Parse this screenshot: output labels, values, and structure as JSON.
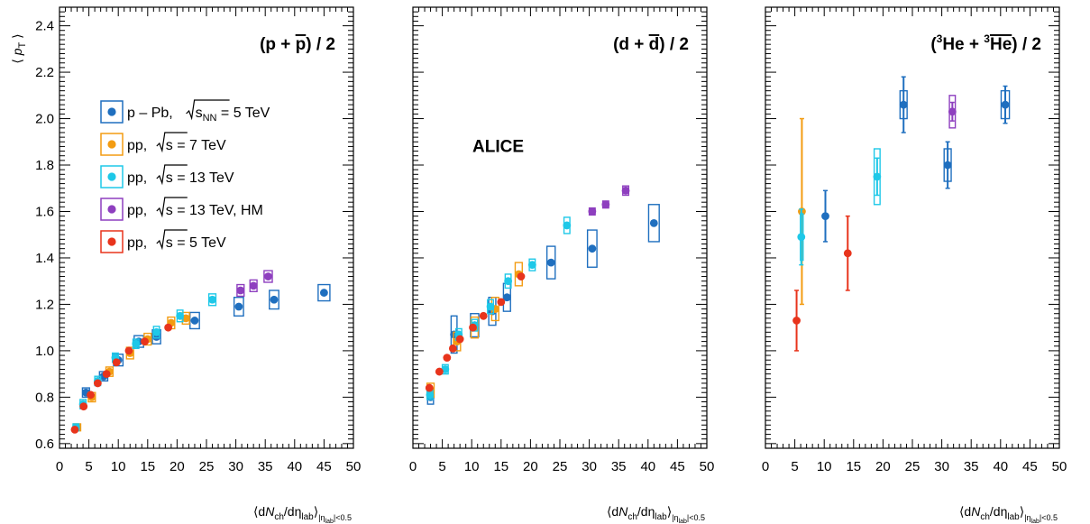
{
  "chart_data": [
    {
      "type": "scatter",
      "title": "(p + p) / 2",
      "title_parts": {
        "open": "(p + ",
        "bar": "p",
        "close": ") / 2"
      },
      "xlabel": {
        "main": "⟨dN",
        "sub1": "ch",
        "mid": "/dη",
        "sub2": "lab",
        "close": "⟩",
        "sub3": "|η_lab|<0.5"
      },
      "ylabel": "⟨ p_T ⟩",
      "xlim": [
        0,
        50
      ],
      "ylim": [
        0.58,
        2.48
      ],
      "xticks": [
        "0",
        "5",
        "10",
        "15",
        "20",
        "25",
        "30",
        "35",
        "40",
        "45",
        "50"
      ],
      "yticks": [
        "0.6",
        "0.8",
        "1.0",
        "1.2",
        "1.4",
        "1.6",
        "1.8",
        "2.0",
        "2.2",
        "2.4"
      ],
      "legend": {
        "placement": "upper-left",
        "entries": [
          {
            "series": "pPb",
            "label_main": "p – Pb, ",
            "sqrt": "s",
            "sqrt_sub": "NN",
            "label_tail": " = 5 TeV"
          },
          {
            "series": "pp7",
            "label_main": "pp, ",
            "sqrt": "s",
            "sqrt_sub": "",
            "label_tail": " = 7 TeV"
          },
          {
            "series": "pp13",
            "label_main": "pp, ",
            "sqrt": "s",
            "sqrt_sub": "",
            "label_tail": " = 13 TeV"
          },
          {
            "series": "pp13HM",
            "label_main": "pp, ",
            "sqrt": "s",
            "sqrt_sub": "",
            "label_tail": " = 13 TeV, HM"
          },
          {
            "series": "pp5",
            "label_main": "pp, ",
            "sqrt": "s",
            "sqrt_sub": "",
            "label_tail": " = 5 TeV"
          }
        ]
      },
      "series": [
        {
          "id": "pPb",
          "color": "#1f6fbf",
          "points": [
            {
              "x": 4.5,
              "y": 0.82,
              "sx": 0.6,
              "sy": 0.02
            },
            {
              "x": 7.5,
              "y": 0.89,
              "sx": 0.7,
              "sy": 0.02
            },
            {
              "x": 10,
              "y": 0.96,
              "sx": 0.8,
              "sy": 0.025
            },
            {
              "x": 13.5,
              "y": 1.04,
              "sx": 0.8,
              "sy": 0.025
            },
            {
              "x": 16.5,
              "y": 1.06,
              "sx": 0.7,
              "sy": 0.03
            },
            {
              "x": 23,
              "y": 1.13,
              "sx": 0.8,
              "sy": 0.035
            },
            {
              "x": 30.5,
              "y": 1.19,
              "sx": 0.8,
              "sy": 0.04
            },
            {
              "x": 36.5,
              "y": 1.22,
              "sx": 0.8,
              "sy": 0.04
            },
            {
              "x": 45,
              "y": 1.25,
              "sx": 1.0,
              "sy": 0.035
            }
          ]
        },
        {
          "id": "pp7",
          "color": "#f39c12",
          "points": [
            {
              "x": 3,
              "y": 0.67,
              "sx": 0.6,
              "sy": 0.015
            },
            {
              "x": 5.5,
              "y": 0.8,
              "sx": 0.6,
              "sy": 0.02
            },
            {
              "x": 8.5,
              "y": 0.91,
              "sx": 0.6,
              "sy": 0.02
            },
            {
              "x": 12,
              "y": 0.99,
              "sx": 0.6,
              "sy": 0.025
            },
            {
              "x": 15,
              "y": 1.05,
              "sx": 0.6,
              "sy": 0.025
            },
            {
              "x": 19,
              "y": 1.12,
              "sx": 0.6,
              "sy": 0.025
            },
            {
              "x": 21.5,
              "y": 1.14,
              "sx": 0.6,
              "sy": 0.025
            }
          ]
        },
        {
          "id": "pp13",
          "color": "#1ec8e8",
          "points": [
            {
              "x": 2.8,
              "y": 0.67,
              "sx": 0.5,
              "sy": 0.015
            },
            {
              "x": 4,
              "y": 0.77,
              "sx": 0.5,
              "sy": 0.02
            },
            {
              "x": 6.5,
              "y": 0.87,
              "sx": 0.5,
              "sy": 0.02
            },
            {
              "x": 9.5,
              "y": 0.97,
              "sx": 0.5,
              "sy": 0.02
            },
            {
              "x": 13,
              "y": 1.03,
              "sx": 0.5,
              "sy": 0.02
            },
            {
              "x": 16.5,
              "y": 1.08,
              "sx": 0.5,
              "sy": 0.025
            },
            {
              "x": 20.5,
              "y": 1.15,
              "sx": 0.5,
              "sy": 0.025
            },
            {
              "x": 26,
              "y": 1.22,
              "sx": 0.6,
              "sy": 0.025
            }
          ]
        },
        {
          "id": "pp13HM",
          "color": "#8e3fbf",
          "points": [
            {
              "x": 30.8,
              "y": 1.26,
              "sx": 0.6,
              "sy": 0.025
            },
            {
              "x": 33,
              "y": 1.28,
              "sx": 0.6,
              "sy": 0.025
            },
            {
              "x": 35.5,
              "y": 1.32,
              "sx": 0.7,
              "sy": 0.025
            }
          ]
        },
        {
          "id": "pp5",
          "color": "#e8341c",
          "points": [
            {
              "x": 2.6,
              "y": 0.66,
              "sx": 0,
              "sy": 0
            },
            {
              "x": 4.1,
              "y": 0.76,
              "sx": 0,
              "sy": 0
            },
            {
              "x": 5.3,
              "y": 0.81,
              "sx": 0,
              "sy": 0
            },
            {
              "x": 6.5,
              "y": 0.86,
              "sx": 0,
              "sy": 0
            },
            {
              "x": 8,
              "y": 0.9,
              "sx": 0,
              "sy": 0
            },
            {
              "x": 9.7,
              "y": 0.95,
              "sx": 0,
              "sy": 0
            },
            {
              "x": 11.8,
              "y": 1.0,
              "sx": 0,
              "sy": 0
            },
            {
              "x": 14.5,
              "y": 1.04,
              "sx": 0,
              "sy": 0
            },
            {
              "x": 18.5,
              "y": 1.1,
              "sx": 0,
              "sy": 0
            }
          ]
        }
      ]
    },
    {
      "type": "scatter",
      "title": "(d + d) / 2",
      "title_parts": {
        "open": "(d + ",
        "bar": "d",
        "close": ") / 2"
      },
      "watermark": "ALICE",
      "xlabel": {
        "main": "⟨dN",
        "sub1": "ch",
        "mid": "/dη",
        "sub2": "lab",
        "close": "⟩",
        "sub3": "|η_lab|<0.5"
      },
      "xlim": [
        0,
        50
      ],
      "ylim": [
        0.58,
        2.48
      ],
      "xticks": [
        "0",
        "5",
        "10",
        "15",
        "20",
        "25",
        "30",
        "35",
        "40",
        "45",
        "50"
      ],
      "series": [
        {
          "id": "pPb",
          "color": "#1f6fbf",
          "points": [
            {
              "x": 3,
              "y": 0.8,
              "sx": 0.5,
              "sy": 0.03
            },
            {
              "x": 7,
              "y": 1.07,
              "sx": 0.5,
              "sy": 0.08
            },
            {
              "x": 10.5,
              "y": 1.11,
              "sx": 0.7,
              "sy": 0.05
            },
            {
              "x": 13.5,
              "y": 1.17,
              "sx": 0.6,
              "sy": 0.06
            },
            {
              "x": 16,
              "y": 1.23,
              "sx": 0.6,
              "sy": 0.06
            },
            {
              "x": 23.5,
              "y": 1.38,
              "sx": 0.7,
              "sy": 0.07
            },
            {
              "x": 30.5,
              "y": 1.44,
              "sx": 0.8,
              "sy": 0.08
            },
            {
              "x": 41,
              "y": 1.55,
              "sx": 0.9,
              "sy": 0.08
            }
          ]
        },
        {
          "id": "pp7",
          "color": "#f39c12",
          "points": [
            {
              "x": 3,
              "y": 0.83,
              "sx": 0.6,
              "sy": 0.03
            },
            {
              "x": 7.5,
              "y": 1.04,
              "sx": 0.6,
              "sy": 0.04
            },
            {
              "x": 10.5,
              "y": 1.1,
              "sx": 0.6,
              "sy": 0.045
            },
            {
              "x": 14,
              "y": 1.18,
              "sx": 0.6,
              "sy": 0.05
            },
            {
              "x": 18,
              "y": 1.33,
              "sx": 0.6,
              "sy": 0.05
            }
          ]
        },
        {
          "id": "pp13",
          "color": "#1ec8e8",
          "points": [
            {
              "x": 2.9,
              "y": 0.81,
              "sx": 0.5,
              "sy": 0.02
            },
            {
              "x": 5.5,
              "y": 0.92,
              "sx": 0.5,
              "sy": 0.02
            },
            {
              "x": 7.8,
              "y": 1.07,
              "sx": 0.5,
              "sy": 0.025
            },
            {
              "x": 10.5,
              "y": 1.11,
              "sx": 0.5,
              "sy": 0.025
            },
            {
              "x": 13.2,
              "y": 1.19,
              "sx": 0.5,
              "sy": 0.03
            },
            {
              "x": 16.2,
              "y": 1.3,
              "sx": 0.5,
              "sy": 0.03
            },
            {
              "x": 20.3,
              "y": 1.37,
              "sx": 0.5,
              "sy": 0.025
            },
            {
              "x": 26.2,
              "y": 1.54,
              "sx": 0.5,
              "sy": 0.035
            }
          ]
        },
        {
          "id": "pp13HM",
          "color": "#8e3fbf",
          "points": [
            {
              "x": 30.5,
              "y": 1.6,
              "sx": 0.5,
              "sy": 0.015
            },
            {
              "x": 32.8,
              "y": 1.63,
              "sx": 0.5,
              "sy": 0.015
            },
            {
              "x": 36.2,
              "y": 1.69,
              "sx": 0.5,
              "sy": 0.02
            }
          ]
        },
        {
          "id": "pp5",
          "color": "#e8341c",
          "points": [
            {
              "x": 2.8,
              "y": 0.84,
              "sx": 0,
              "sy": 0
            },
            {
              "x": 4.5,
              "y": 0.91,
              "sx": 0,
              "sy": 0
            },
            {
              "x": 5.8,
              "y": 0.97,
              "sx": 0,
              "sy": 0
            },
            {
              "x": 6.8,
              "y": 1.01,
              "sx": 0,
              "sy": 0
            },
            {
              "x": 8,
              "y": 1.05,
              "sx": 0,
              "sy": 0
            },
            {
              "x": 10.2,
              "y": 1.1,
              "sx": 0,
              "sy": 0
            },
            {
              "x": 12,
              "y": 1.15,
              "sx": 0,
              "sy": 0
            },
            {
              "x": 15,
              "y": 1.21,
              "sx": 0,
              "sy": 0
            },
            {
              "x": 18.4,
              "y": 1.32,
              "sx": 0,
              "sy": 0
            }
          ]
        }
      ]
    },
    {
      "type": "scatter",
      "title": "(3He + 3He) / 2",
      "title_parts": {
        "open": "(",
        "sup1": "3",
        "mid": "He + ",
        "sup2": "3",
        "bar": "He",
        "close": ") / 2"
      },
      "xlabel": {
        "main": "⟨dN",
        "sub1": "ch",
        "mid": "/dη",
        "sub2": "lab",
        "close": "⟩",
        "sub3": "|η_lab|<0.5"
      },
      "xlim": [
        0,
        50
      ],
      "ylim": [
        0.58,
        2.48
      ],
      "xticks": [
        "0",
        "5",
        "10",
        "15",
        "20",
        "25",
        "30",
        "35",
        "40",
        "45",
        "50"
      ],
      "series": [
        {
          "id": "pPb",
          "color": "#1f6fbf",
          "points": [
            {
              "x": 10.2,
              "y": 1.58,
              "sx": 0,
              "sy": 0,
              "err": 0.11
            },
            {
              "x": 23.5,
              "y": 2.06,
              "sx": 0.6,
              "sy": 0.06,
              "err": 0.12
            },
            {
              "x": 31,
              "y": 1.8,
              "sx": 0.6,
              "sy": 0.07,
              "err": 0.1
            },
            {
              "x": 40.8,
              "y": 2.06,
              "sx": 0.7,
              "sy": 0.06,
              "err": 0.08
            }
          ]
        },
        {
          "id": "pp7",
          "color": "#f39c12",
          "points": [
            {
              "x": 6.2,
              "y": 1.6,
              "sx": 0,
              "sy": 0,
              "err": 0.4
            }
          ]
        },
        {
          "id": "pp13",
          "color": "#1ec8e8",
          "points": [
            {
              "x": 6.1,
              "y": 1.49,
              "sx": 0.15,
              "sy": 0.1,
              "err": 0.12
            },
            {
              "x": 19,
              "y": 1.75,
              "sx": 0.5,
              "sy": 0.12,
              "err": 0.08
            }
          ]
        },
        {
          "id": "pp13HM",
          "color": "#8e3fbf",
          "points": [
            {
              "x": 31.8,
              "y": 2.03,
              "sx": 0.5,
              "sy": 0.07,
              "err": 0.04
            }
          ]
        },
        {
          "id": "pp5",
          "color": "#e8341c",
          "points": [
            {
              "x": 5.3,
              "y": 1.13,
              "sx": 0,
              "sy": 0,
              "err": 0.13
            },
            {
              "x": 14,
              "y": 1.42,
              "sx": 0,
              "sy": 0,
              "err": 0.16
            }
          ]
        }
      ]
    }
  ]
}
